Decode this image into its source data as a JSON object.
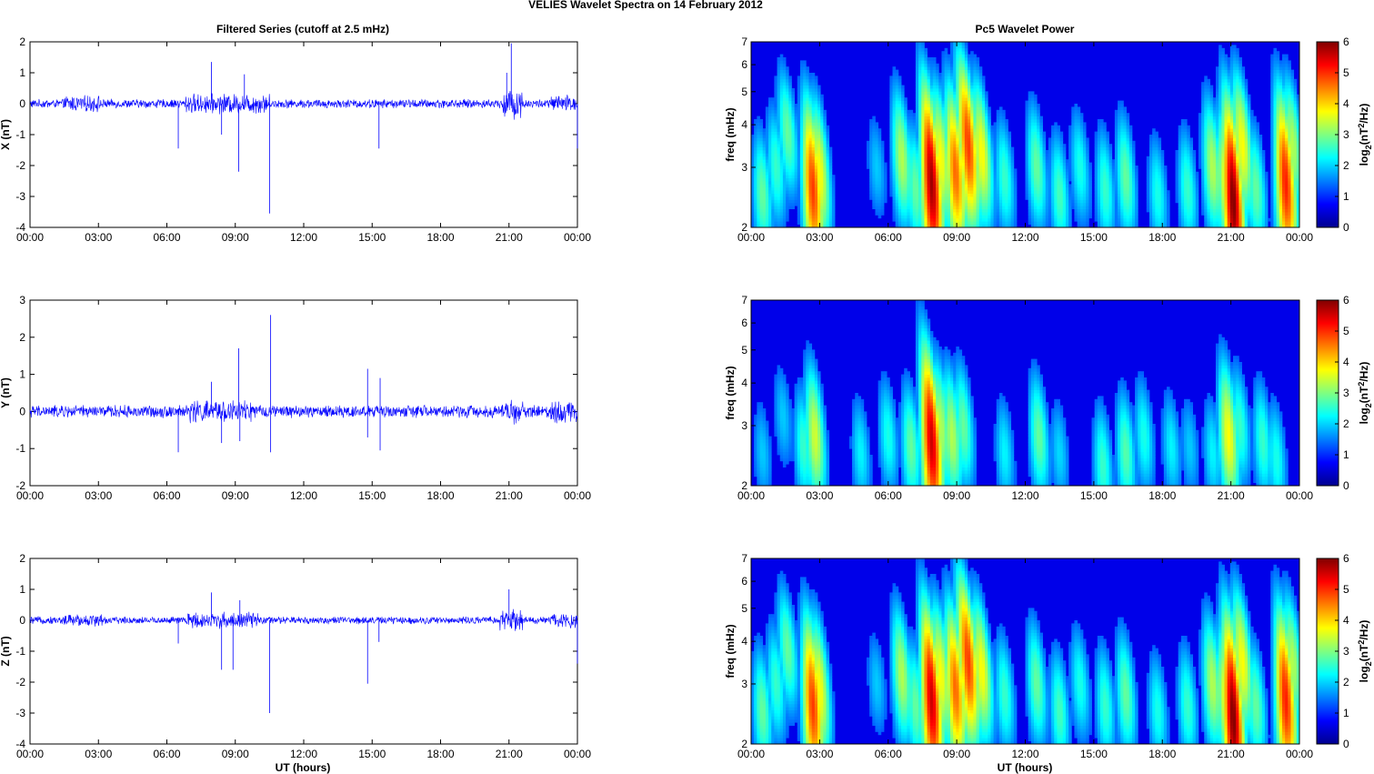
{
  "figure_title": "VELIES Wavelet Spectra on 14 February  2012",
  "left_title": "Filtered Series (cutoff at 2.5 mHz)",
  "right_title": "Pc5 Wavelet Power",
  "x_tick_labels": [
    "00:00",
    "03:00",
    "06:00",
    "09:00",
    "12:00",
    "15:00",
    "18:00",
    "21:00",
    "00:00"
  ],
  "x_axis_label": "UT (hours)",
  "freq_label": "freq (mHz)",
  "colorbar_label_base": "log",
  "colorbar_label_sub": "2",
  "colorbar_label_open": "(nT",
  "colorbar_label_sup": "2",
  "colorbar_label_close": "/Hz)",
  "colors": {
    "trace": "#0000ff",
    "axes": "#000000"
  },
  "chart_data": [
    {
      "type": "line",
      "panel": "X",
      "ylabel": "X (nT)",
      "xlim": [
        0,
        24
      ],
      "ylim": [
        -4,
        2
      ],
      "yticks": [
        -4,
        -3,
        -2,
        -1,
        0,
        1,
        2
      ],
      "noise_amplitude": 0.12,
      "active_intervals": [
        [
          1.5,
          3.2,
          0.1
        ],
        [
          6.8,
          10.5,
          0.15
        ],
        [
          20.7,
          21.6,
          0.3
        ],
        [
          22.8,
          24,
          0.12
        ]
      ],
      "spikes": [
        [
          6.5,
          -1.45
        ],
        [
          7.95,
          1.35
        ],
        [
          8.4,
          -1.0
        ],
        [
          9.15,
          -2.2
        ],
        [
          9.4,
          0.95
        ],
        [
          10.5,
          -3.55
        ],
        [
          15.3,
          -1.45
        ],
        [
          20.9,
          1.0
        ],
        [
          21.1,
          1.95
        ],
        [
          24,
          -1.45
        ]
      ]
    },
    {
      "type": "line",
      "panel": "Y",
      "ylabel": "Y (nT)",
      "xlim": [
        0,
        24
      ],
      "ylim": [
        -2,
        3
      ],
      "yticks": [
        -2,
        -1,
        0,
        1,
        2,
        3
      ],
      "noise_amplitude": 0.14,
      "active_intervals": [
        [
          6.8,
          9.7,
          0.12
        ],
        [
          20.7,
          21.6,
          0.14
        ],
        [
          22.8,
          24,
          0.12
        ]
      ],
      "spikes": [
        [
          6.5,
          -1.1
        ],
        [
          7.95,
          0.8
        ],
        [
          8.4,
          -0.85
        ],
        [
          9.15,
          1.7
        ],
        [
          9.2,
          -0.8
        ],
        [
          10.55,
          2.6
        ],
        [
          10.55,
          -1.1
        ],
        [
          14.8,
          1.15
        ],
        [
          14.8,
          -0.7
        ],
        [
          15.35,
          -1.05
        ],
        [
          15.35,
          0.9
        ]
      ]
    },
    {
      "type": "line",
      "panel": "Z",
      "ylabel": "Z (nT)",
      "xlim": [
        0,
        24
      ],
      "ylim": [
        -4,
        2
      ],
      "yticks": [
        -4,
        -3,
        -2,
        -1,
        0,
        1,
        2
      ],
      "noise_amplitude": 0.1,
      "active_intervals": [
        [
          1.5,
          3.2,
          0.08
        ],
        [
          6.8,
          10.0,
          0.12
        ],
        [
          20.6,
          21.6,
          0.2
        ],
        [
          22.8,
          24,
          0.1
        ]
      ],
      "spikes": [
        [
          6.5,
          -0.75
        ],
        [
          7.95,
          0.9
        ],
        [
          8.4,
          -1.6
        ],
        [
          8.9,
          -1.6
        ],
        [
          9.2,
          0.65
        ],
        [
          10.5,
          -3.0
        ],
        [
          14.8,
          -2.05
        ],
        [
          15.3,
          -0.7
        ],
        [
          21.0,
          1.0
        ],
        [
          24,
          -1.4
        ]
      ]
    },
    {
      "type": "heatmap",
      "panel": "X",
      "xlim": [
        0,
        24
      ],
      "ylim": [
        2,
        7
      ],
      "yscale": "log",
      "yticks": [
        2,
        3,
        4,
        5,
        6,
        7
      ],
      "clim": [
        0,
        6
      ],
      "colorbar_ticks": [
        0,
        1,
        2,
        3,
        4,
        5,
        6
      ],
      "bursts": [
        [
          0.5,
          2.5,
          2.5
        ],
        [
          1.1,
          3.0,
          2.2
        ],
        [
          1.6,
          3.8,
          2.5
        ],
        [
          2.7,
          2.6,
          4.8
        ],
        [
          3.0,
          2.9,
          3.5
        ],
        [
          5.5,
          3.0,
          1.5
        ],
        [
          6.6,
          3.2,
          3.0
        ],
        [
          7.2,
          2.6,
          2.5
        ],
        [
          7.9,
          2.7,
          5.8
        ],
        [
          8.3,
          3.2,
          3.5
        ],
        [
          8.95,
          2.9,
          4.5
        ],
        [
          9.5,
          3.5,
          4.8
        ],
        [
          10.1,
          3.3,
          3.5
        ],
        [
          11.1,
          2.8,
          2.2
        ],
        [
          12.5,
          3.0,
          2.5
        ],
        [
          13.5,
          2.5,
          2.3
        ],
        [
          14.4,
          3.0,
          2.0
        ],
        [
          15.5,
          2.6,
          2.2
        ],
        [
          16.4,
          2.8,
          2.5
        ],
        [
          17.8,
          2.5,
          2.0
        ],
        [
          19.1,
          2.6,
          2.2
        ],
        [
          20.2,
          3.0,
          3.0
        ],
        [
          20.8,
          2.7,
          3.5
        ],
        [
          21.1,
          2.4,
          6.0
        ],
        [
          21.5,
          3.5,
          3.5
        ],
        [
          22.1,
          2.6,
          2.5
        ],
        [
          23.4,
          2.7,
          5.0
        ],
        [
          23.7,
          3.5,
          3.0
        ]
      ]
    },
    {
      "type": "heatmap",
      "panel": "Y",
      "xlim": [
        0,
        24
      ],
      "ylim": [
        2,
        7
      ],
      "yscale": "log",
      "yticks": [
        2,
        3,
        4,
        5,
        6,
        7
      ],
      "clim": [
        0,
        6
      ],
      "colorbar_ticks": [
        0,
        1,
        2,
        3,
        4,
        5,
        6
      ],
      "bursts": [
        [
          0.5,
          2.5,
          1.5
        ],
        [
          1.4,
          3.2,
          1.5
        ],
        [
          2.3,
          2.6,
          2.2
        ],
        [
          2.8,
          2.8,
          3.2
        ],
        [
          4.8,
          2.5,
          1.8
        ],
        [
          6.0,
          2.8,
          2.0
        ],
        [
          7.0,
          2.6,
          2.5
        ],
        [
          7.9,
          2.7,
          5.5
        ],
        [
          8.3,
          3.0,
          3.0
        ],
        [
          8.8,
          2.8,
          3.0
        ],
        [
          9.3,
          3.0,
          2.5
        ],
        [
          11.1,
          2.5,
          1.8
        ],
        [
          12.6,
          2.8,
          2.5
        ],
        [
          13.5,
          2.5,
          1.6
        ],
        [
          15.4,
          2.3,
          2.2
        ],
        [
          16.4,
          2.5,
          2.4
        ],
        [
          17.2,
          2.8,
          2.0
        ],
        [
          18.4,
          2.6,
          1.8
        ],
        [
          19.2,
          2.6,
          1.5
        ],
        [
          20.2,
          2.5,
          1.8
        ],
        [
          20.9,
          2.8,
          3.5
        ],
        [
          21.4,
          3.0,
          2.2
        ],
        [
          22.4,
          2.7,
          2.2
        ],
        [
          23.0,
          2.4,
          2.0
        ]
      ]
    },
    {
      "type": "heatmap",
      "panel": "Z",
      "xlim": [
        0,
        24
      ],
      "ylim": [
        2,
        7
      ],
      "yscale": "log",
      "yticks": [
        2,
        3,
        4,
        5,
        6,
        7
      ],
      "clim": [
        0,
        6
      ],
      "colorbar_ticks": [
        0,
        1,
        2,
        3,
        4,
        5,
        6
      ],
      "bursts": [
        [
          0.5,
          2.5,
          2.5
        ],
        [
          1.1,
          3.0,
          2.2
        ],
        [
          1.6,
          3.8,
          2.5
        ],
        [
          2.7,
          2.6,
          4.8
        ],
        [
          3.0,
          2.9,
          3.5
        ],
        [
          5.5,
          3.0,
          1.5
        ],
        [
          6.6,
          3.2,
          3.0
        ],
        [
          7.2,
          2.6,
          2.5
        ],
        [
          7.9,
          2.7,
          5.5
        ],
        [
          8.3,
          3.2,
          3.5
        ],
        [
          8.95,
          2.9,
          4.5
        ],
        [
          9.5,
          3.5,
          4.8
        ],
        [
          10.1,
          3.3,
          3.5
        ],
        [
          11.1,
          2.8,
          2.2
        ],
        [
          12.5,
          3.0,
          2.5
        ],
        [
          13.5,
          2.5,
          2.3
        ],
        [
          14.4,
          3.0,
          2.0
        ],
        [
          15.5,
          2.6,
          2.2
        ],
        [
          16.4,
          2.8,
          2.5
        ],
        [
          17.8,
          2.5,
          2.0
        ],
        [
          19.1,
          2.6,
          2.2
        ],
        [
          20.2,
          3.0,
          3.0
        ],
        [
          20.8,
          2.7,
          3.5
        ],
        [
          21.1,
          2.4,
          6.0
        ],
        [
          21.5,
          3.5,
          3.5
        ],
        [
          22.1,
          2.6,
          2.5
        ],
        [
          23.4,
          2.7,
          5.0
        ],
        [
          23.7,
          3.5,
          3.0
        ]
      ]
    }
  ]
}
